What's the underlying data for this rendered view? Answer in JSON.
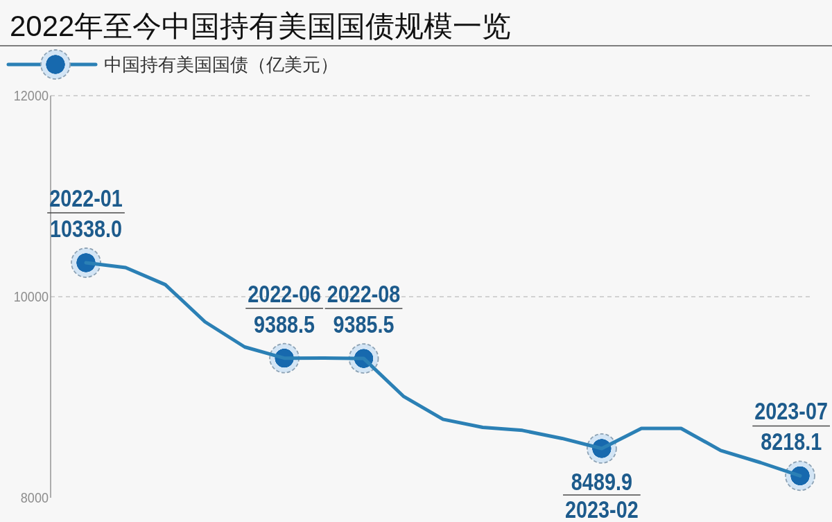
{
  "chart_data": {
    "type": "line",
    "title": "2022年至今中国持有美国国债规模一览",
    "categories": [
      "2022-01",
      null,
      null,
      null,
      null,
      "2022-06",
      null,
      "2022-08",
      null,
      null,
      null,
      null,
      null,
      "2023-02",
      null,
      null,
      null,
      null,
      "2023-07"
    ],
    "series": [
      {
        "name": "中国持有美国国债（亿美元）",
        "color": "#2b80b5",
        "values": [
          10338.0,
          10290,
          10120,
          9750,
          9500,
          9388.5,
          9390,
          9385.5,
          9010,
          8780,
          8700,
          8670,
          8590,
          8489.9,
          8690,
          8690,
          8470,
          8350,
          8218.1
        ],
        "value_labels": [
          "10338.0",
          null,
          null,
          null,
          null,
          "9388.5",
          null,
          "9385.5",
          null,
          null,
          null,
          null,
          null,
          "8489.9",
          null,
          null,
          null,
          null,
          "8218.1"
        ]
      }
    ],
    "ylim": [
      8000,
      12000
    ],
    "yticks": [
      8000,
      10000,
      12000
    ],
    "grid": "y",
    "legend": "top left",
    "line_style": "solid"
  }
}
